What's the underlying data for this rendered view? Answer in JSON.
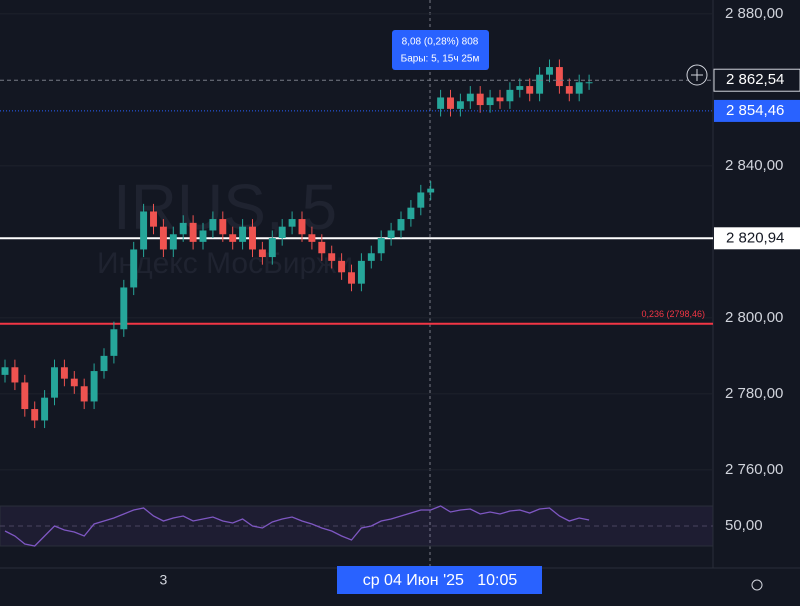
{
  "chart_data": {
    "type": "candlestick",
    "watermark": "IRUS, 5",
    "watermark_subtitle": "Индекс МосБиржи",
    "tooltip": [
      "8,08 (0,28%) 808",
      "Бары: 5, 15ч 25м"
    ],
    "crosshair_label": "ср 04 Июн '25   10:05",
    "categories": [
      null,
      null,
      null,
      null,
      null,
      null,
      null,
      null,
      null,
      null,
      null,
      null,
      null,
      null,
      null,
      null,
      "3",
      null,
      null,
      null,
      null,
      null,
      null,
      null,
      null,
      null,
      null,
      null,
      null,
      null,
      null,
      null,
      null,
      null,
      null,
      null,
      null,
      null,
      null,
      null,
      null,
      null,
      null,
      null,
      null,
      null,
      null,
      null,
      null,
      null,
      null,
      null,
      null,
      null,
      null,
      null,
      null,
      null,
      null,
      null
    ],
    "open": [
      2785,
      2787,
      2783,
      2776,
      2773,
      2779,
      2787,
      2784,
      2782,
      2778,
      2786,
      2790,
      2797,
      2808,
      2818,
      2828,
      2824,
      2818,
      2822,
      2825,
      2820,
      2823,
      2826,
      2822,
      2820,
      2824,
      2818,
      2816,
      2821,
      2824,
      2826,
      2822,
      2820,
      2817,
      2815,
      2812,
      2809,
      2815,
      2817,
      2821,
      2823,
      2826,
      2829,
      2833,
      2855,
      2858,
      2855,
      2857,
      2859,
      2856,
      2858,
      2857,
      2860,
      2861,
      2859,
      2864,
      2866,
      2861,
      2859,
      2862
    ],
    "high": [
      2789,
      2789,
      2785,
      2778,
      2781,
      2789,
      2789,
      2786,
      2784,
      2788,
      2792,
      2799,
      2810,
      2820,
      2830,
      2830,
      2826,
      2824,
      2827,
      2827,
      2825,
      2828,
      2828,
      2824,
      2826,
      2826,
      2820,
      2823,
      2826,
      2828,
      2828,
      2824,
      2822,
      2819,
      2817,
      2814,
      2817,
      2819,
      2823,
      2825,
      2828,
      2831,
      2835,
      2836,
      2860,
      2860,
      2859,
      2861,
      2861,
      2860,
      2860,
      2862,
      2863,
      2863,
      2866,
      2868,
      2868,
      2863,
      2864,
      2864
    ],
    "low": [
      2783,
      2781,
      2774,
      2771,
      2771,
      2777,
      2782,
      2780,
      2776,
      2776,
      2784,
      2788,
      2795,
      2806,
      2816,
      2822,
      2816,
      2816,
      2820,
      2818,
      2818,
      2821,
      2820,
      2818,
      2818,
      2816,
      2814,
      2814,
      2819,
      2822,
      2820,
      2818,
      2815,
      2813,
      2810,
      2807,
      2807,
      2813,
      2815,
      2819,
      2821,
      2824,
      2827,
      2831,
      2853,
      2853,
      2853,
      2855,
      2854,
      2854,
      2855,
      2855,
      2858,
      2857,
      2857,
      2862,
      2859,
      2857,
      2857,
      2860
    ],
    "close": [
      2787,
      2783,
      2776,
      2773,
      2779,
      2787,
      2784,
      2782,
      2778,
      2786,
      2790,
      2797,
      2808,
      2818,
      2828,
      2824,
      2818,
      2822,
      2825,
      2820,
      2823,
      2826,
      2822,
      2820,
      2824,
      2818,
      2816,
      2821,
      2824,
      2826,
      2822,
      2820,
      2817,
      2815,
      2812,
      2809,
      2815,
      2817,
      2821,
      2823,
      2826,
      2829,
      2833,
      2834,
      2858,
      2855,
      2857,
      2859,
      2856,
      2858,
      2857,
      2860,
      2861,
      2859,
      2864,
      2866,
      2861,
      2859,
      2862,
      2862
    ],
    "up_color": "#26a69a",
    "down_color": "#ef5350",
    "ylim": [
      2754.7,
      2883.65
    ],
    "yticks": [
      {
        "value": 2760,
        "label": "2 760,00"
      },
      {
        "value": 2780,
        "label": "2 780,00"
      },
      {
        "value": 2800,
        "label": "2 800,00"
      },
      {
        "value": 2840,
        "label": "2 840,00"
      },
      {
        "value": 2880,
        "label": "2 880,00"
      }
    ],
    "grid": true,
    "levels": [
      {
        "value": 2820.94,
        "label": "2 820,94",
        "color": "#ffffff"
      },
      {
        "value": 2798.46,
        "label": "0,236 (2798,46)",
        "color": "#f23645"
      }
    ],
    "price_labels": [
      {
        "value": 2862.54,
        "label": "2 862,54"
      },
      {
        "value": 2854.46,
        "label": "2 854,46"
      }
    ],
    "rsi": {
      "values": [
        45,
        40,
        32,
        30,
        40,
        50,
        46,
        44,
        40,
        52,
        55,
        58,
        62,
        66,
        68,
        60,
        55,
        58,
        60,
        55,
        57,
        59,
        55,
        53,
        57,
        50,
        48,
        54,
        57,
        59,
        55,
        52,
        48,
        45,
        40,
        36,
        48,
        50,
        55,
        57,
        60,
        63,
        66,
        66,
        70,
        64,
        66,
        67,
        62,
        64,
        62,
        65,
        66,
        63,
        67,
        68,
        60,
        55,
        58,
        56
      ],
      "color": "#7e57c2",
      "ylim": [
        11,
        86
      ],
      "yticks": [
        {
          "value": 50,
          "label": "50,00"
        }
      ],
      "bands": [
        30,
        70
      ]
    }
  }
}
